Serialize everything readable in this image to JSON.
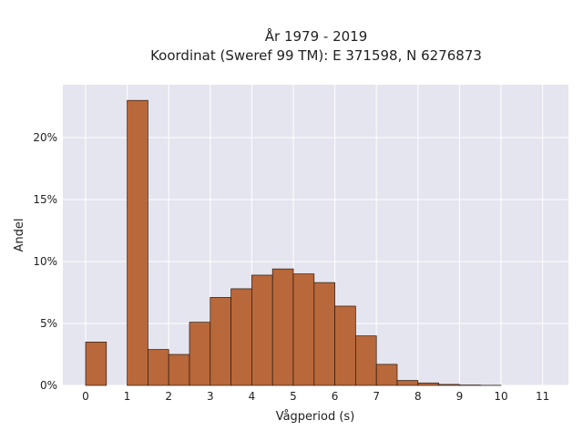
{
  "chart_data": {
    "type": "bar",
    "title_lines": [
      "År 1979 - 2019",
      "Koordinat (Sweref 99 TM): E 371598, N 6276873"
    ],
    "xlabel": "Vågperiod (s)",
    "ylabel": "Andel",
    "x_ticks": [
      "0",
      "1",
      "2",
      "3",
      "4",
      "5",
      "6",
      "7",
      "8",
      "9",
      "10",
      "11"
    ],
    "y_ticks": [
      "0%",
      "5%",
      "10%",
      "15%",
      "20%"
    ],
    "x_range": [
      -0.5,
      11.5
    ],
    "ylim": [
      0,
      24
    ],
    "bin_width": 0.5,
    "bins": [
      {
        "start": 0.0,
        "value": 3.5
      },
      {
        "start": 1.0,
        "value": 23.0
      },
      {
        "start": 1.5,
        "value": 2.9
      },
      {
        "start": 2.0,
        "value": 2.5
      },
      {
        "start": 2.5,
        "value": 5.1
      },
      {
        "start": 3.0,
        "value": 7.1
      },
      {
        "start": 3.5,
        "value": 7.8
      },
      {
        "start": 4.0,
        "value": 8.9
      },
      {
        "start": 4.5,
        "value": 9.4
      },
      {
        "start": 5.0,
        "value": 9.0
      },
      {
        "start": 5.5,
        "value": 8.3
      },
      {
        "start": 6.0,
        "value": 6.4
      },
      {
        "start": 6.5,
        "value": 4.0
      },
      {
        "start": 7.0,
        "value": 1.7
      },
      {
        "start": 7.5,
        "value": 0.4
      },
      {
        "start": 8.0,
        "value": 0.2
      },
      {
        "start": 8.5,
        "value": 0.08
      },
      {
        "start": 9.0,
        "value": 0.03
      },
      {
        "start": 9.5,
        "value": 0.01
      }
    ],
    "grid": true,
    "colors": {
      "bar_fill": "#b8683a",
      "bar_stroke": "#2b1a10",
      "plot_bg": "#e5e5ef",
      "grid": "#ffffff"
    }
  }
}
